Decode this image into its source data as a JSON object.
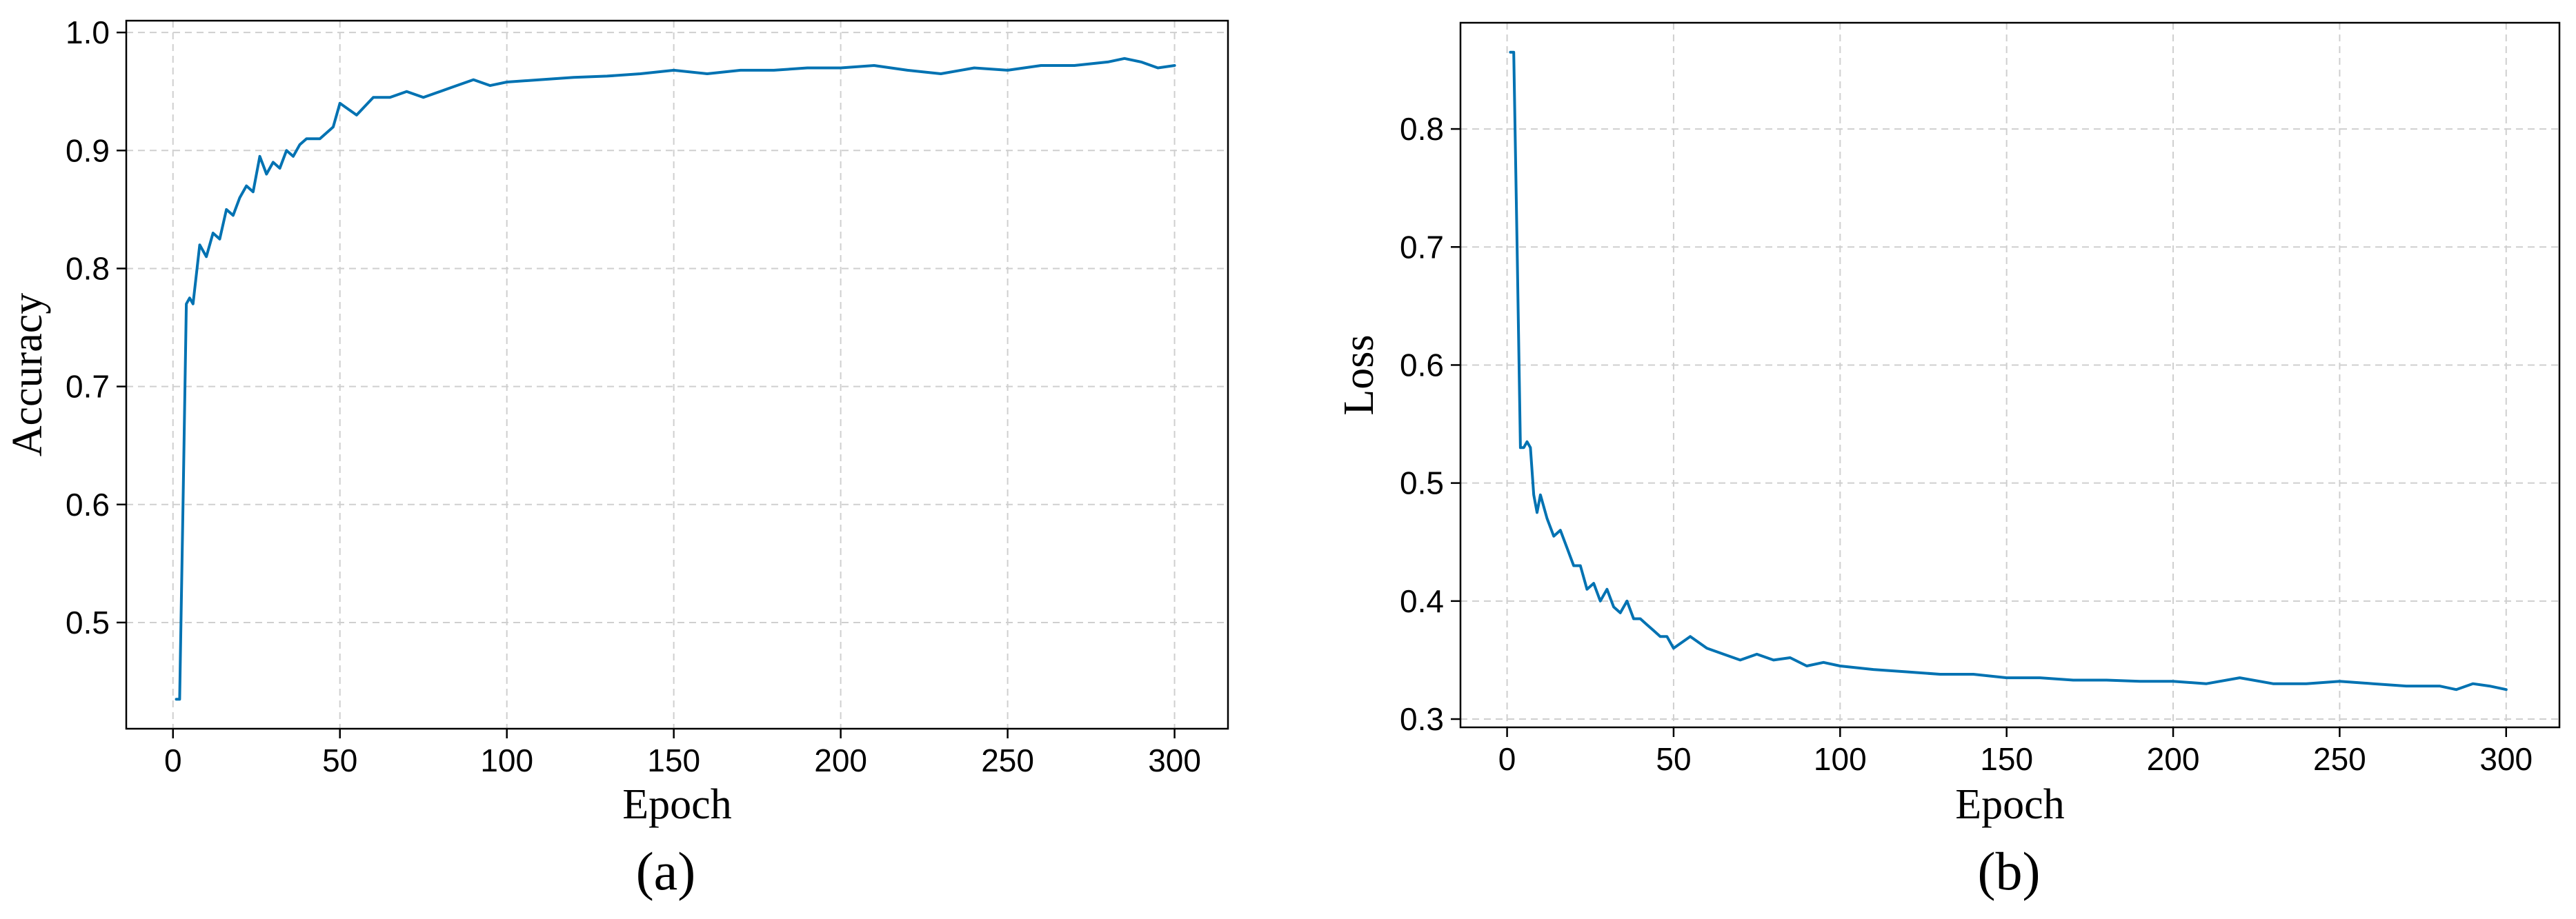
{
  "chart_data": [
    {
      "type": "line",
      "panel_label": "(a)",
      "xlabel": "Epoch",
      "ylabel": "Accuracy",
      "xlim": [
        -14,
        316
      ],
      "ylim": [
        0.41,
        1.01
      ],
      "xticks": [
        0,
        50,
        100,
        150,
        200,
        250,
        300
      ],
      "yticks": [
        0.5,
        0.6,
        0.7,
        0.8,
        0.9,
        1.0
      ],
      "ytick_labels": [
        "0.5",
        "0.6",
        "0.7",
        "0.8",
        "0.9",
        "1.0"
      ],
      "grid": true,
      "line_color": "#0072b2",
      "x": [
        1,
        2,
        3,
        4,
        5,
        6,
        8,
        10,
        12,
        14,
        16,
        18,
        20,
        22,
        24,
        26,
        28,
        30,
        32,
        34,
        36,
        38,
        40,
        44,
        48,
        50,
        55,
        60,
        65,
        70,
        75,
        80,
        85,
        90,
        95,
        100,
        110,
        120,
        130,
        140,
        150,
        160,
        170,
        180,
        190,
        200,
        210,
        220,
        230,
        240,
        250,
        260,
        270,
        280,
        285,
        290,
        295,
        300
      ],
      "y": [
        0.435,
        0.435,
        0.6,
        0.77,
        0.775,
        0.77,
        0.82,
        0.81,
        0.83,
        0.825,
        0.85,
        0.845,
        0.86,
        0.87,
        0.865,
        0.895,
        0.88,
        0.89,
        0.885,
        0.9,
        0.895,
        0.905,
        0.91,
        0.91,
        0.92,
        0.94,
        0.93,
        0.945,
        0.945,
        0.95,
        0.945,
        0.95,
        0.955,
        0.96,
        0.955,
        0.958,
        0.96,
        0.962,
        0.963,
        0.965,
        0.968,
        0.965,
        0.968,
        0.968,
        0.97,
        0.97,
        0.972,
        0.968,
        0.965,
        0.97,
        0.968,
        0.972,
        0.972,
        0.975,
        0.978,
        0.975,
        0.97,
        0.972
      ]
    },
    {
      "type": "line",
      "panel_label": "(b)",
      "xlabel": "Epoch",
      "ylabel": "Loss",
      "xlim": [
        -14,
        316
      ],
      "ylim": [
        0.293,
        0.89
      ],
      "xticks": [
        0,
        50,
        100,
        150,
        200,
        250,
        300
      ],
      "yticks": [
        0.3,
        0.4,
        0.5,
        0.6,
        0.7,
        0.8
      ],
      "ytick_labels": [
        "0.3",
        "0.4",
        "0.5",
        "0.6",
        "0.7",
        "0.8"
      ],
      "grid": true,
      "line_color": "#0072b2",
      "x": [
        1,
        2,
        3,
        4,
        5,
        6,
        7,
        8,
        9,
        10,
        12,
        14,
        16,
        18,
        20,
        22,
        24,
        26,
        28,
        30,
        32,
        34,
        36,
        38,
        40,
        42,
        44,
        46,
        48,
        50,
        55,
        60,
        65,
        70,
        75,
        80,
        85,
        90,
        95,
        100,
        110,
        120,
        130,
        140,
        150,
        160,
        170,
        180,
        190,
        200,
        210,
        220,
        230,
        240,
        250,
        260,
        270,
        280,
        285,
        290,
        295,
        300
      ],
      "y": [
        0.865,
        0.865,
        0.7,
        0.53,
        0.53,
        0.535,
        0.53,
        0.49,
        0.475,
        0.49,
        0.47,
        0.455,
        0.46,
        0.445,
        0.43,
        0.43,
        0.41,
        0.415,
        0.4,
        0.41,
        0.395,
        0.39,
        0.4,
        0.385,
        0.385,
        0.38,
        0.375,
        0.37,
        0.37,
        0.36,
        0.37,
        0.36,
        0.355,
        0.35,
        0.355,
        0.35,
        0.352,
        0.345,
        0.348,
        0.345,
        0.342,
        0.34,
        0.338,
        0.338,
        0.335,
        0.335,
        0.333,
        0.333,
        0.332,
        0.332,
        0.33,
        0.335,
        0.33,
        0.33,
        0.332,
        0.33,
        0.328,
        0.328,
        0.325,
        0.33,
        0.328,
        0.325
      ]
    }
  ]
}
